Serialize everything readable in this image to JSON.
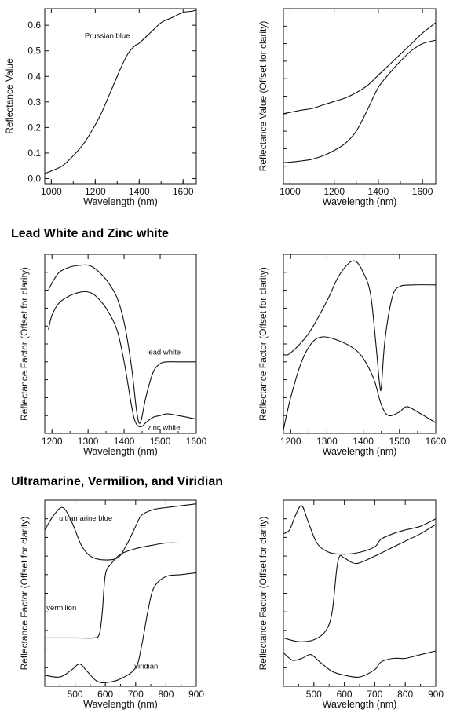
{
  "sections": {
    "s2_title": "Lead White and Zinc white",
    "s3_title": "Ultramarine, Vermilion, and Viridian"
  },
  "chart_data": [
    {
      "id": "c1",
      "type": "line",
      "xlabel": "Wavelength (nm)",
      "ylabel": "Reflectance Value",
      "xlim": [
        970,
        1660
      ],
      "ylim": [
        -0.02,
        0.665
      ],
      "xticks": [
        "1000",
        "1200",
        "1400",
        "1600"
      ],
      "xtick_values": [
        1000,
        1200,
        1400,
        1600
      ],
      "yticks": [
        "0.0",
        "0.1",
        "0.2",
        "0.3",
        "0.4",
        "0.5",
        "0.6"
      ],
      "ytick_values": [
        0.0,
        0.1,
        0.2,
        0.3,
        0.4,
        0.5,
        0.6
      ],
      "series": [
        {
          "name": "Prussian blue",
          "x": [
            970,
            1000,
            1050,
            1100,
            1150,
            1200,
            1230,
            1260,
            1290,
            1320,
            1350,
            1380,
            1400,
            1450,
            1500,
            1550,
            1600,
            1640,
            1660
          ],
          "y": [
            0.02,
            0.03,
            0.05,
            0.09,
            0.14,
            0.21,
            0.26,
            0.32,
            0.38,
            0.44,
            0.49,
            0.52,
            0.53,
            0.57,
            0.61,
            0.63,
            0.65,
            0.655,
            0.66
          ]
        }
      ],
      "annotations": [
        {
          "text": "Prussian blue",
          "x": 1255,
          "y": 0.55
        }
      ]
    },
    {
      "id": "c2",
      "type": "line",
      "xlabel": "Wavelength (nm)",
      "ylabel": "Reflectance Value (Offset for clarity)",
      "xlim": [
        970,
        1660
      ],
      "ylim": [
        0,
        1
      ],
      "xticks": [
        "1000",
        "1200",
        "1400",
        "1600"
      ],
      "xtick_values": [
        1000,
        1200,
        1400,
        1600
      ],
      "series": [
        {
          "x": [
            970,
            1050,
            1100,
            1150,
            1200,
            1250,
            1300,
            1350,
            1400,
            1450,
            1500,
            1550,
            1600,
            1660
          ],
          "y": [
            0.4,
            0.42,
            0.43,
            0.45,
            0.47,
            0.49,
            0.52,
            0.56,
            0.62,
            0.68,
            0.74,
            0.8,
            0.86,
            0.92
          ]
        },
        {
          "x": [
            970,
            1050,
            1100,
            1150,
            1200,
            1250,
            1300,
            1350,
            1400,
            1450,
            1500,
            1550,
            1600,
            1660
          ],
          "y": [
            0.12,
            0.13,
            0.14,
            0.16,
            0.19,
            0.23,
            0.3,
            0.42,
            0.55,
            0.63,
            0.7,
            0.76,
            0.8,
            0.82
          ]
        }
      ]
    },
    {
      "id": "c3",
      "type": "line",
      "xlabel": "Wavelength (nm)",
      "ylabel": "Reflectance Factor (Offset for clarity)",
      "xlim": [
        1180,
        1600
      ],
      "ylim": [
        0,
        1
      ],
      "xticks": [
        "1200",
        "1300",
        "1400",
        "1500",
        "1600"
      ],
      "xtick_values": [
        1200,
        1300,
        1400,
        1500,
        1600
      ],
      "series": [
        {
          "name": "lead white",
          "x": [
            1190,
            1200,
            1220,
            1250,
            1280,
            1300,
            1320,
            1350,
            1380,
            1400,
            1420,
            1435,
            1445,
            1460,
            1480,
            1500,
            1520,
            1550,
            1600
          ],
          "y": [
            0.8,
            0.84,
            0.9,
            0.93,
            0.94,
            0.94,
            0.92,
            0.86,
            0.76,
            0.62,
            0.38,
            0.12,
            0.06,
            0.2,
            0.34,
            0.39,
            0.4,
            0.4,
            0.4
          ]
        },
        {
          "name": "zinc white",
          "x": [
            1190,
            1200,
            1220,
            1250,
            1280,
            1300,
            1320,
            1350,
            1380,
            1400,
            1420,
            1430,
            1440,
            1450,
            1460,
            1480,
            1500,
            1520,
            1550,
            1600
          ],
          "y": [
            0.58,
            0.66,
            0.73,
            0.77,
            0.79,
            0.79,
            0.77,
            0.7,
            0.58,
            0.4,
            0.16,
            0.07,
            0.04,
            0.04,
            0.06,
            0.09,
            0.1,
            0.11,
            0.1,
            0.08
          ]
        }
      ],
      "annotations": [
        {
          "text": "lead white",
          "x": 1510,
          "y": 0.44
        },
        {
          "text": "zinc white",
          "x": 1510,
          "y": 0.02
        }
      ]
    },
    {
      "id": "c4",
      "type": "line",
      "xlabel": "Wavelength (nm)",
      "ylabel": "Reflectance Factor (Offset for clarity)",
      "xlim": [
        1180,
        1600
      ],
      "ylim": [
        0,
        1
      ],
      "xticks": [
        "1200",
        "1300",
        "1400",
        "1500",
        "1600"
      ],
      "xtick_values": [
        1200,
        1300,
        1400,
        1500,
        1600
      ],
      "series": [
        {
          "x": [
            1180,
            1200,
            1250,
            1300,
            1330,
            1360,
            1380,
            1400,
            1420,
            1435,
            1445,
            1450,
            1460,
            1480,
            1500,
            1540,
            1600
          ],
          "y": [
            0.44,
            0.45,
            0.56,
            0.74,
            0.87,
            0.95,
            0.96,
            0.9,
            0.78,
            0.5,
            0.28,
            0.26,
            0.52,
            0.76,
            0.82,
            0.83,
            0.83
          ]
        },
        {
          "x": [
            1180,
            1200,
            1230,
            1260,
            1290,
            1330,
            1370,
            1400,
            1430,
            1450,
            1470,
            1500,
            1520,
            1550,
            1600
          ],
          "y": [
            0.02,
            0.2,
            0.4,
            0.51,
            0.54,
            0.52,
            0.48,
            0.42,
            0.3,
            0.16,
            0.1,
            0.12,
            0.15,
            0.12,
            0.06
          ]
        }
      ]
    },
    {
      "id": "c5",
      "type": "line",
      "xlabel": "Wavelength (nm)",
      "ylabel": "Reflectance Factor (Offset for clarity)",
      "xlim": [
        400,
        900
      ],
      "ylim": [
        0,
        1
      ],
      "xticks": [
        "500",
        "600",
        "700",
        "800",
        "900"
      ],
      "xtick_values": [
        500,
        600,
        700,
        800,
        900
      ],
      "series": [
        {
          "name": "ultramarine blue",
          "x": [
            400,
            430,
            460,
            490,
            520,
            550,
            590,
            640,
            670,
            700,
            720,
            760,
            800,
            850,
            900
          ],
          "y": [
            0.84,
            0.92,
            0.96,
            0.88,
            0.76,
            0.7,
            0.68,
            0.69,
            0.76,
            0.86,
            0.92,
            0.95,
            0.96,
            0.97,
            0.98
          ]
        },
        {
          "name": "vermilion",
          "x": [
            400,
            500,
            560,
            580,
            590,
            600,
            620,
            650,
            700,
            760,
            800,
            850,
            900
          ],
          "y": [
            0.26,
            0.26,
            0.26,
            0.28,
            0.4,
            0.6,
            0.66,
            0.71,
            0.74,
            0.76,
            0.77,
            0.77,
            0.77
          ]
        },
        {
          "name": "viridian",
          "x": [
            400,
            450,
            490,
            515,
            540,
            570,
            600,
            650,
            700,
            720,
            740,
            760,
            800,
            850,
            900
          ],
          "y": [
            0.06,
            0.05,
            0.09,
            0.12,
            0.08,
            0.03,
            0.02,
            0.04,
            0.1,
            0.22,
            0.4,
            0.53,
            0.59,
            0.6,
            0.61
          ]
        }
      ],
      "annotations": [
        {
          "text": "ultramarine blue",
          "x": 535,
          "y": 0.89
        },
        {
          "text": "vermilion",
          "x": 455,
          "y": 0.41
        },
        {
          "text": "viridian",
          "x": 735,
          "y": 0.095
        }
      ]
    },
    {
      "id": "c6",
      "type": "line",
      "xlabel": "Wavelength (nm)",
      "ylabel": "Reflectance Factor (Offset for clarity)",
      "xlim": [
        400,
        900
      ],
      "ylim": [
        0,
        1
      ],
      "xticks": [
        "500",
        "600",
        "700",
        "800",
        "900"
      ],
      "xtick_values": [
        500,
        600,
        700,
        800,
        900
      ],
      "series": [
        {
          "x": [
            400,
            420,
            440,
            460,
            480,
            510,
            550,
            600,
            650,
            700,
            720,
            760,
            800,
            850,
            900
          ],
          "y": [
            0.82,
            0.84,
            0.92,
            0.97,
            0.89,
            0.77,
            0.72,
            0.71,
            0.72,
            0.75,
            0.79,
            0.82,
            0.84,
            0.86,
            0.9
          ]
        },
        {
          "x": [
            400,
            450,
            500,
            540,
            560,
            575,
            585,
            600,
            640,
            700,
            750,
            800,
            850,
            900
          ],
          "y": [
            0.26,
            0.24,
            0.25,
            0.3,
            0.4,
            0.63,
            0.7,
            0.69,
            0.66,
            0.7,
            0.74,
            0.78,
            0.82,
            0.87
          ]
        },
        {
          "x": [
            400,
            430,
            460,
            490,
            520,
            560,
            600,
            650,
            700,
            720,
            760,
            800,
            850,
            900
          ],
          "y": [
            0.18,
            0.14,
            0.15,
            0.17,
            0.13,
            0.08,
            0.06,
            0.05,
            0.09,
            0.13,
            0.15,
            0.15,
            0.17,
            0.19
          ]
        }
      ]
    }
  ]
}
